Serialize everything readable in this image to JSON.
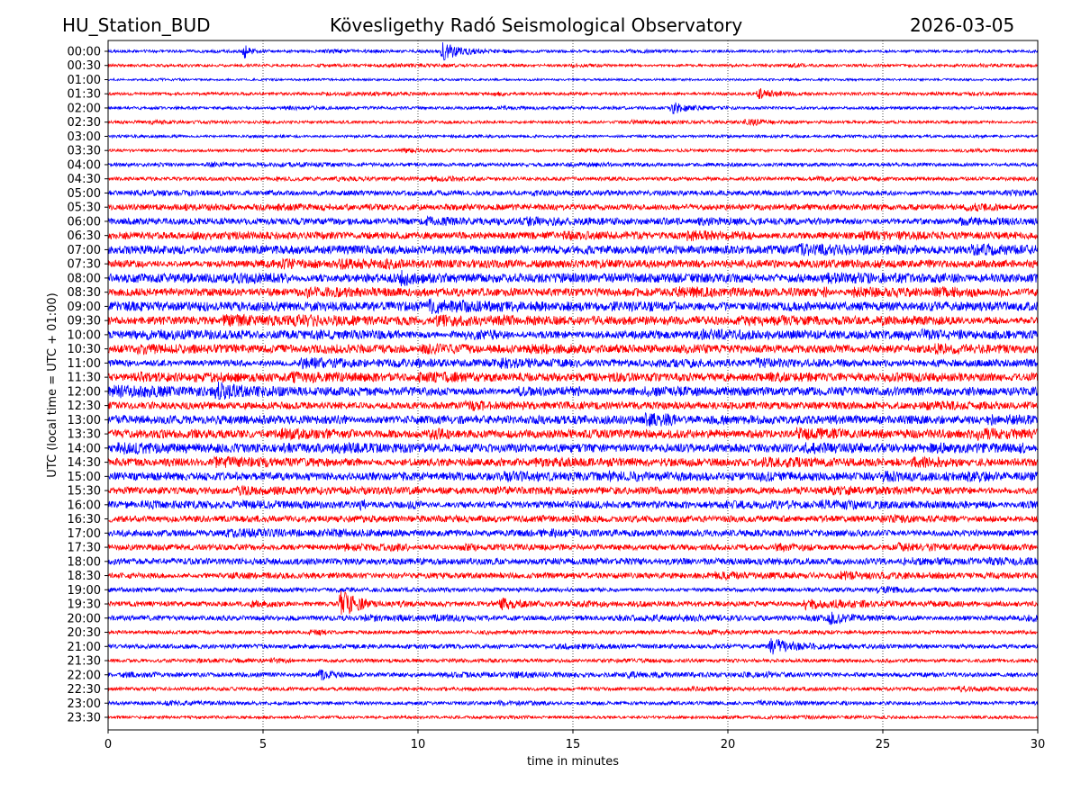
{
  "header": {
    "station": "HU_Station_BUD",
    "observatory": "Kövesligethy Radó Seismological Observatory",
    "date": "2026-03-05"
  },
  "chart_data": {
    "type": "line",
    "title": "Kövesligethy Radó Seismological Observatory",
    "xlabel": "time in minutes",
    "ylabel": "UTC (local time = UTC + 01:00)",
    "xlim": [
      0,
      30
    ],
    "xticks": [
      "0",
      "5",
      "10",
      "15",
      "20",
      "25",
      "30"
    ],
    "grid": "vertical dotted at x ticks",
    "row_colors": [
      "#0000ff",
      "#ff0000"
    ],
    "rows": [
      "00:00",
      "00:30",
      "01:00",
      "01:30",
      "02:00",
      "02:30",
      "03:00",
      "03:30",
      "04:00",
      "04:30",
      "05:00",
      "05:30",
      "06:00",
      "06:30",
      "07:00",
      "07:30",
      "08:00",
      "08:30",
      "09:00",
      "09:30",
      "10:00",
      "10:30",
      "11:00",
      "11:30",
      "12:00",
      "12:30",
      "13:00",
      "13:30",
      "14:00",
      "14:30",
      "15:00",
      "15:30",
      "16:00",
      "16:30",
      "17:00",
      "17:30",
      "18:00",
      "18:30",
      "19:00",
      "19:30",
      "20:00",
      "20:30",
      "21:00",
      "21:30",
      "22:00",
      "22:30",
      "23:00",
      "23:30"
    ],
    "noise_level": [
      0.2,
      0.2,
      0.15,
      0.2,
      0.2,
      0.2,
      0.2,
      0.2,
      0.25,
      0.25,
      0.35,
      0.4,
      0.45,
      0.5,
      0.6,
      0.55,
      0.65,
      0.55,
      0.65,
      0.6,
      0.6,
      0.55,
      0.5,
      0.55,
      0.6,
      0.5,
      0.6,
      0.6,
      0.6,
      0.55,
      0.55,
      0.5,
      0.5,
      0.45,
      0.45,
      0.4,
      0.45,
      0.4,
      0.3,
      0.35,
      0.35,
      0.25,
      0.3,
      0.25,
      0.3,
      0.25,
      0.25,
      0.2
    ],
    "events": [
      {
        "row": 0,
        "minute": 4.4,
        "amplitude": 1.0,
        "duration": 0.2
      },
      {
        "row": 0,
        "minute": 10.8,
        "amplitude": 1.1,
        "duration": 0.6
      },
      {
        "row": 3,
        "minute": 21.0,
        "amplitude": 0.6,
        "duration": 0.5
      },
      {
        "row": 4,
        "minute": 18.2,
        "amplitude": 0.7,
        "duration": 0.6
      },
      {
        "row": 5,
        "minute": 20.6,
        "amplitude": 0.5,
        "duration": 0.5
      },
      {
        "row": 16,
        "minute": 9.5,
        "amplitude": 0.9,
        "duration": 0.3
      },
      {
        "row": 24,
        "minute": 3.5,
        "amplitude": 0.8,
        "duration": 0.8
      },
      {
        "row": 39,
        "minute": 7.5,
        "amplitude": 1.9,
        "duration": 0.5
      },
      {
        "row": 39,
        "minute": 12.7,
        "amplitude": 0.7,
        "duration": 0.4
      },
      {
        "row": 39,
        "minute": 22.5,
        "amplitude": 0.6,
        "duration": 0.8
      },
      {
        "row": 40,
        "minute": 23.3,
        "amplitude": 0.6,
        "duration": 0.5
      },
      {
        "row": 42,
        "minute": 21.4,
        "amplitude": 1.0,
        "duration": 0.8
      },
      {
        "row": 44,
        "minute": 6.8,
        "amplitude": 0.6,
        "duration": 0.4
      }
    ]
  }
}
